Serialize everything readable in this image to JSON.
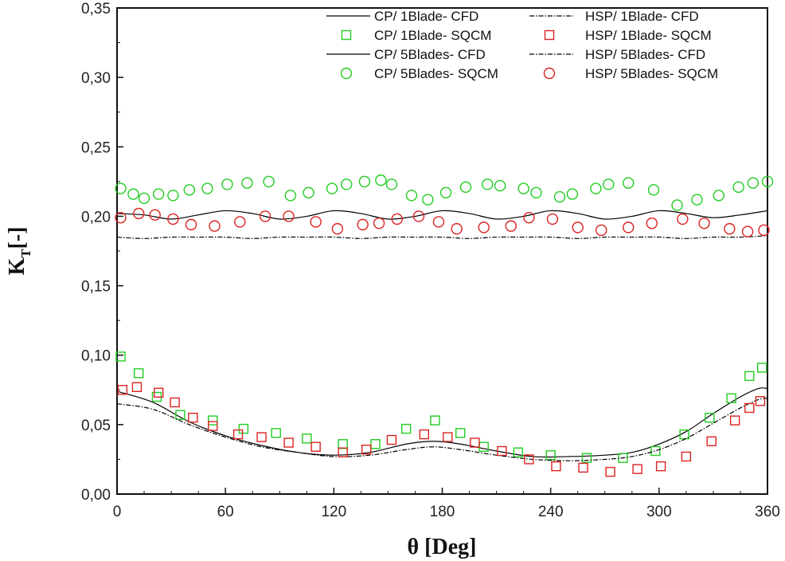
{
  "chart_data": {
    "type": "scatter",
    "title": "",
    "xlabel": "θ [Deg]",
    "ylabel_main": "K",
    "ylabel_sub": "T",
    "ylabel_suffix": "[-]",
    "xlim": [
      0,
      360
    ],
    "ylim": [
      0,
      0.35
    ],
    "xticks": [
      0,
      60,
      120,
      180,
      240,
      300,
      360
    ],
    "xtick_labels": [
      "0",
      "60",
      "120",
      "180",
      "240",
      "300",
      "360"
    ],
    "yticks": [
      0,
      0.05,
      0.1,
      0.15,
      0.2,
      0.25,
      0.3,
      0.35
    ],
    "ytick_labels": [
      "0,00",
      "0,05",
      "0,10",
      "0,15",
      "0,20",
      "0,25",
      "0,30",
      "0,35"
    ],
    "grid": false,
    "legend_position": "top-right",
    "series": [
      {
        "name": "CP/ 1Blade- CFD",
        "kind": "line",
        "style": "solid",
        "color": "#000000",
        "x": [
          0,
          20,
          40,
          60,
          80,
          100,
          120,
          140,
          160,
          175,
          190,
          210,
          230,
          250,
          270,
          285,
          300,
          315,
          330,
          345,
          355,
          360
        ],
        "y": [
          0.074,
          0.066,
          0.052,
          0.042,
          0.035,
          0.03,
          0.028,
          0.03,
          0.036,
          0.038,
          0.036,
          0.031,
          0.027,
          0.027,
          0.028,
          0.03,
          0.036,
          0.045,
          0.058,
          0.07,
          0.076,
          0.076
        ]
      },
      {
        "name": "CP/ 1Blade- SQCM",
        "kind": "marker",
        "marker": "square",
        "color": "#22cc22",
        "x": [
          2,
          12,
          22,
          35,
          53,
          70,
          88,
          105,
          125,
          143,
          160,
          176,
          190,
          203,
          222,
          240,
          260,
          280,
          298,
          314,
          328,
          340,
          350,
          357
        ],
        "y": [
          0.099,
          0.087,
          0.07,
          0.057,
          0.053,
          0.047,
          0.044,
          0.04,
          0.036,
          0.036,
          0.047,
          0.053,
          0.044,
          0.034,
          0.03,
          0.028,
          0.026,
          0.026,
          0.031,
          0.043,
          0.055,
          0.069,
          0.085,
          0.091
        ]
      },
      {
        "name": "CP/ 5Blades- CFD",
        "kind": "line",
        "style": "solid",
        "color": "#000000",
        "x": [
          0,
          15,
          30,
          45,
          60,
          75,
          90,
          105,
          120,
          135,
          150,
          165,
          180,
          195,
          210,
          225,
          240,
          255,
          270,
          285,
          300,
          315,
          330,
          345,
          360
        ],
        "y": [
          0.202,
          0.201,
          0.198,
          0.201,
          0.204,
          0.202,
          0.198,
          0.2,
          0.204,
          0.202,
          0.198,
          0.2,
          0.204,
          0.202,
          0.198,
          0.2,
          0.204,
          0.202,
          0.198,
          0.2,
          0.204,
          0.202,
          0.199,
          0.201,
          0.204
        ]
      },
      {
        "name": "CP/ 5Blades- SQCM",
        "kind": "marker",
        "marker": "circle",
        "color": "#22cc22",
        "x": [
          2,
          9,
          15,
          23,
          31,
          40,
          50,
          61,
          72,
          84,
          96,
          106,
          119,
          127,
          137,
          146,
          152,
          163,
          172,
          182,
          193,
          205,
          212,
          225,
          232,
          245,
          252,
          265,
          272,
          283,
          297,
          310,
          321,
          333,
          344,
          352,
          360
        ],
        "y": [
          0.22,
          0.216,
          0.213,
          0.216,
          0.215,
          0.219,
          0.22,
          0.223,
          0.224,
          0.225,
          0.215,
          0.217,
          0.22,
          0.223,
          0.225,
          0.226,
          0.223,
          0.215,
          0.212,
          0.217,
          0.221,
          0.223,
          0.222,
          0.22,
          0.217,
          0.214,
          0.216,
          0.22,
          0.223,
          0.224,
          0.219,
          0.208,
          0.212,
          0.215,
          0.221,
          0.224,
          0.225
        ]
      },
      {
        "name": "HSP/ 1Blade- CFD",
        "kind": "line",
        "style": "dashdot",
        "color": "#000000",
        "x": [
          0,
          20,
          40,
          60,
          80,
          100,
          120,
          140,
          160,
          175,
          190,
          210,
          230,
          250,
          270,
          285,
          300,
          315,
          330,
          345,
          355,
          360
        ],
        "y": [
          0.065,
          0.061,
          0.05,
          0.041,
          0.034,
          0.03,
          0.027,
          0.028,
          0.032,
          0.034,
          0.032,
          0.028,
          0.025,
          0.024,
          0.025,
          0.027,
          0.032,
          0.04,
          0.051,
          0.062,
          0.068,
          0.069
        ]
      },
      {
        "name": "HSP/ 1Blade- SQCM",
        "kind": "marker",
        "marker": "square",
        "color": "#dd2222",
        "x": [
          3,
          11,
          23,
          32,
          42,
          53,
          67,
          80,
          95,
          110,
          125,
          138,
          152,
          170,
          183,
          198,
          213,
          228,
          243,
          258,
          273,
          288,
          301,
          315,
          329,
          342,
          350,
          356
        ],
        "y": [
          0.075,
          0.077,
          0.073,
          0.066,
          0.055,
          0.049,
          0.043,
          0.041,
          0.037,
          0.034,
          0.03,
          0.032,
          0.039,
          0.043,
          0.041,
          0.037,
          0.031,
          0.025,
          0.02,
          0.019,
          0.016,
          0.018,
          0.02,
          0.027,
          0.038,
          0.053,
          0.062,
          0.067
        ]
      },
      {
        "name": "HSP/ 5Blades- CFD",
        "kind": "line",
        "style": "dashdot",
        "color": "#000000",
        "x": [
          0,
          15,
          30,
          45,
          60,
          75,
          90,
          105,
          120,
          135,
          150,
          165,
          180,
          195,
          210,
          225,
          240,
          255,
          270,
          285,
          300,
          315,
          330,
          345,
          360
        ],
        "y": [
          0.185,
          0.184,
          0.185,
          0.185,
          0.185,
          0.184,
          0.185,
          0.185,
          0.185,
          0.184,
          0.185,
          0.185,
          0.185,
          0.184,
          0.185,
          0.185,
          0.185,
          0.184,
          0.185,
          0.185,
          0.185,
          0.184,
          0.185,
          0.185,
          0.186
        ]
      },
      {
        "name": "HSP/ 5Blades- SQCM",
        "kind": "marker",
        "marker": "circle",
        "color": "#dd2222",
        "x": [
          2,
          12,
          21,
          31,
          41,
          54,
          68,
          82,
          95,
          110,
          122,
          136,
          145,
          155,
          167,
          178,
          188,
          203,
          218,
          228,
          241,
          255,
          268,
          283,
          296,
          313,
          325,
          339,
          349,
          358
        ],
        "y": [
          0.199,
          0.202,
          0.201,
          0.198,
          0.194,
          0.193,
          0.196,
          0.2,
          0.2,
          0.196,
          0.191,
          0.194,
          0.195,
          0.198,
          0.2,
          0.196,
          0.191,
          0.192,
          0.193,
          0.199,
          0.198,
          0.192,
          0.19,
          0.192,
          0.195,
          0.198,
          0.195,
          0.191,
          0.189,
          0.19
        ]
      }
    ]
  }
}
